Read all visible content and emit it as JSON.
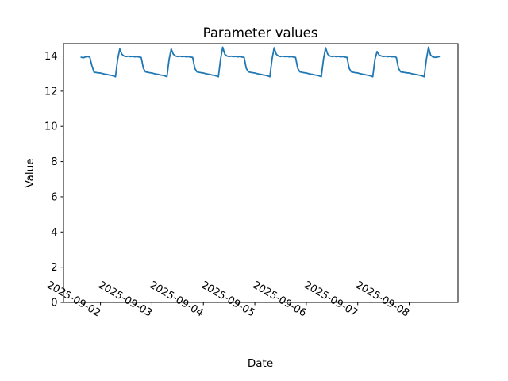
{
  "chart_data": {
    "type": "line",
    "title": "Parameter values",
    "xlabel": "Date",
    "ylabel": "Value",
    "grid": false,
    "legend": null,
    "background": "#ffffff",
    "axis_color": "#000000",
    "line_color": "#1f77b4",
    "ylim": [
      0,
      14.7
    ],
    "yticks": [
      0,
      2,
      4,
      6,
      8,
      10,
      12,
      14
    ],
    "xlim_hours": [
      6.75,
      190.75
    ],
    "xticks": [
      {
        "hour": 24,
        "label": "2025-09-02"
      },
      {
        "hour": 48,
        "label": "2025-09-03"
      },
      {
        "hour": 72,
        "label": "2025-09-04"
      },
      {
        "hour": 96,
        "label": "2025-09-05"
      },
      {
        "hour": 120,
        "label": "2025-09-06"
      },
      {
        "hour": 144,
        "label": "2025-09-07"
      },
      {
        "hour": 168,
        "label": "2025-09-08"
      }
    ],
    "series": [
      {
        "name": "Parameter values",
        "start": "2025-09-01 15:00",
        "start_hour_offset": 15,
        "step_hours": 1,
        "daily_pattern_note": "overnight decline 13.05-12.82, morning spike to ~14.4 at 09:00, day plateau ~13.95, evening drop to ~13.1 at 20:00",
        "values": [
          13.93,
          13.9,
          13.95,
          13.97,
          13.94,
          13.45,
          13.08,
          13.06,
          13.04,
          13.03,
          13.0,
          12.97,
          12.95,
          12.92,
          12.9,
          12.87,
          12.82,
          13.8,
          14.4,
          14.1,
          14.0,
          13.97,
          13.99,
          13.96,
          13.98,
          13.95,
          13.97,
          13.94,
          13.92,
          13.3,
          13.1,
          13.07,
          13.05,
          13.03,
          13.0,
          12.97,
          12.95,
          12.92,
          12.9,
          12.87,
          12.82,
          13.8,
          14.4,
          14.1,
          14.0,
          13.97,
          13.99,
          13.96,
          13.98,
          13.95,
          13.97,
          13.94,
          13.92,
          13.3,
          13.1,
          13.07,
          13.05,
          13.03,
          13.0,
          12.97,
          12.95,
          12.92,
          12.9,
          12.87,
          12.82,
          13.8,
          14.5,
          14.1,
          14.0,
          13.97,
          13.99,
          13.96,
          13.98,
          13.95,
          13.97,
          13.94,
          13.92,
          13.3,
          13.1,
          13.07,
          13.05,
          13.03,
          13.0,
          12.97,
          12.95,
          12.92,
          12.9,
          12.87,
          12.82,
          13.8,
          14.47,
          14.1,
          14.0,
          13.97,
          13.99,
          13.96,
          13.98,
          13.95,
          13.97,
          13.94,
          13.92,
          13.3,
          13.1,
          13.07,
          13.05,
          13.03,
          13.0,
          12.97,
          12.95,
          12.92,
          12.9,
          12.87,
          12.82,
          13.8,
          14.47,
          14.1,
          14.0,
          13.97,
          13.99,
          13.96,
          13.98,
          13.95,
          13.97,
          13.94,
          13.92,
          13.3,
          13.1,
          13.07,
          13.05,
          13.03,
          13.0,
          12.97,
          12.95,
          12.92,
          12.9,
          12.87,
          12.82,
          13.8,
          14.25,
          14.05,
          14.0,
          13.97,
          13.99,
          13.96,
          13.98,
          13.95,
          13.97,
          13.92,
          13.3,
          13.1,
          13.08,
          13.06,
          13.04,
          13.03,
          13.0,
          12.97,
          12.95,
          12.92,
          12.9,
          12.87,
          12.82,
          13.8,
          14.5,
          14.05,
          13.95,
          13.92,
          13.94,
          13.96
        ]
      }
    ]
  }
}
